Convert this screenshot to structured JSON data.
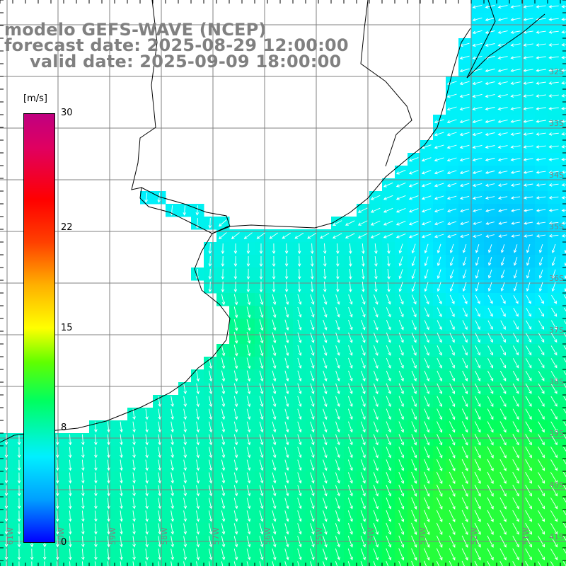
{
  "titles": {
    "model": "modelo GEFS-WAVE (NCEP)",
    "forecast": "forecast date: 2025-08-29 12:00:00",
    "valid": "valid date: 2025-09-09 18:00:00"
  },
  "colorbar": {
    "unit": "[m/s]",
    "min": 0,
    "max": 30,
    "ticks": [
      "30",
      "22",
      "15",
      "8",
      "0"
    ],
    "colors": [
      "#0000ff",
      "#00a0ff",
      "#00f0ff",
      "#00ff60",
      "#60ff00",
      "#ffff00",
      "#ffb000",
      "#ff4000",
      "#ff0000",
      "#e00060",
      "#c00080"
    ]
  },
  "map": {
    "lat_labels": [
      "32S",
      "33S",
      "34S",
      "35S",
      "36S",
      "37S",
      "38S",
      "39S",
      "40S",
      "41S"
    ],
    "lon_labels": [
      "61W",
      "60W",
      "59W",
      "58W",
      "57W",
      "56W",
      "55W",
      "54W",
      "53W",
      "52W",
      "51W"
    ],
    "land_color": "#ffffff",
    "grid_color": "#808080",
    "vector_color": "#ffffff"
  }
}
